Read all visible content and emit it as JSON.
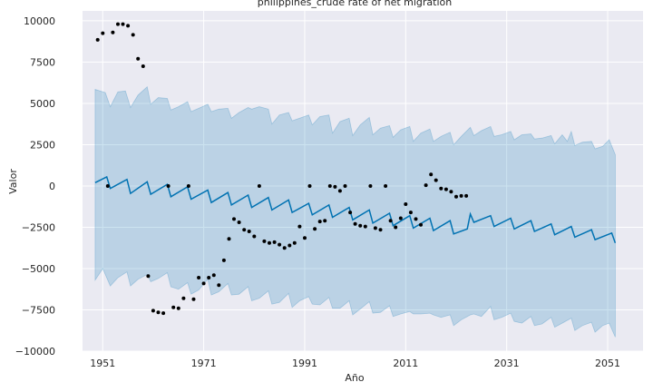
{
  "chart_data": {
    "type": "line",
    "title": "philippines_crude rate of net migration",
    "xlabel": "Año",
    "ylabel": "Valor",
    "xlim": [
      1947,
      2058
    ],
    "ylim": [
      -10000,
      10600
    ],
    "x_ticks": [
      1951,
      1971,
      1991,
      2011,
      2031,
      2051
    ],
    "x_tick_labels": [
      "1951",
      "1971",
      "1991",
      "2011",
      "2031",
      "2051"
    ],
    "y_ticks": [
      10000,
      7500,
      5000,
      2500,
      0,
      -2500,
      -5000,
      -7500,
      -10000
    ],
    "y_tick_labels": [
      "10000",
      "7500",
      "5000",
      "2500",
      "0",
      "−2500",
      "−5000",
      "−7500",
      "−10000"
    ],
    "grid": true,
    "colors": {
      "background": "#eaeaf2",
      "grid": "#ffffff",
      "forecast_line": "#0072b2",
      "interval_fill": "#0072b2",
      "observed_points": "#000000"
    },
    "observed": [
      {
        "x": 1950,
        "y": 8850
      },
      {
        "x": 1951,
        "y": 9250
      },
      {
        "x": 1952,
        "y": 0
      },
      {
        "x": 1953,
        "y": 9300
      },
      {
        "x": 1954,
        "y": 9800
      },
      {
        "x": 1955,
        "y": 9800
      },
      {
        "x": 1956,
        "y": 9700
      },
      {
        "x": 1957,
        "y": 9150
      },
      {
        "x": 1958,
        "y": 7700
      },
      {
        "x": 1959,
        "y": 7250
      },
      {
        "x": 1960,
        "y": -5450
      },
      {
        "x": 1961,
        "y": -7550
      },
      {
        "x": 1962,
        "y": -7650
      },
      {
        "x": 1963,
        "y": -7700
      },
      {
        "x": 1964,
        "y": 0
      },
      {
        "x": 1965,
        "y": -7350
      },
      {
        "x": 1966,
        "y": -7400
      },
      {
        "x": 1967,
        "y": -6800
      },
      {
        "x": 1968,
        "y": 0
      },
      {
        "x": 1969,
        "y": -6850
      },
      {
        "x": 1970,
        "y": -5550
      },
      {
        "x": 1971,
        "y": -5900
      },
      {
        "x": 1972,
        "y": -5550
      },
      {
        "x": 1973,
        "y": -5400
      },
      {
        "x": 1974,
        "y": -6000
      },
      {
        "x": 1975,
        "y": -4500
      },
      {
        "x": 1976,
        "y": -3200
      },
      {
        "x": 1977,
        "y": -2000
      },
      {
        "x": 1978,
        "y": -2200
      },
      {
        "x": 1979,
        "y": -2650
      },
      {
        "x": 1980,
        "y": -2750
      },
      {
        "x": 1981,
        "y": -3050
      },
      {
        "x": 1982,
        "y": 0
      },
      {
        "x": 1983,
        "y": -3350
      },
      {
        "x": 1984,
        "y": -3450
      },
      {
        "x": 1985,
        "y": -3400
      },
      {
        "x": 1986,
        "y": -3550
      },
      {
        "x": 1987,
        "y": -3750
      },
      {
        "x": 1988,
        "y": -3600
      },
      {
        "x": 1989,
        "y": -3450
      },
      {
        "x": 1990,
        "y": -2450
      },
      {
        "x": 1991,
        "y": -3150
      },
      {
        "x": 1992,
        "y": 0
      },
      {
        "x": 1993,
        "y": -2600
      },
      {
        "x": 1994,
        "y": -2150
      },
      {
        "x": 1995,
        "y": -2100
      },
      {
        "x": 1996,
        "y": 0
      },
      {
        "x": 1997,
        "y": -50
      },
      {
        "x": 1998,
        "y": -300
      },
      {
        "x": 1999,
        "y": 0
      },
      {
        "x": 2000,
        "y": -1600
      },
      {
        "x": 2001,
        "y": -2300
      },
      {
        "x": 2002,
        "y": -2400
      },
      {
        "x": 2003,
        "y": -2450
      },
      {
        "x": 2004,
        "y": 0
      },
      {
        "x": 2005,
        "y": -2550
      },
      {
        "x": 2006,
        "y": -2650
      },
      {
        "x": 2007,
        "y": 0
      },
      {
        "x": 2008,
        "y": -2100
      },
      {
        "x": 2009,
        "y": -2500
      },
      {
        "x": 2010,
        "y": -1950
      },
      {
        "x": 2011,
        "y": -1100
      },
      {
        "x": 2012,
        "y": -1600
      },
      {
        "x": 2013,
        "y": -2000
      },
      {
        "x": 2014,
        "y": -2350
      },
      {
        "x": 2015,
        "y": 50
      },
      {
        "x": 2016,
        "y": 700
      },
      {
        "x": 2017,
        "y": 350
      },
      {
        "x": 2018,
        "y": -150
      },
      {
        "x": 2019,
        "y": -200
      },
      {
        "x": 2020,
        "y": -350
      },
      {
        "x": 2021,
        "y": -650
      },
      {
        "x": 2022,
        "y": -600
      },
      {
        "x": 2023,
        "y": -600
      }
    ],
    "forecast": [
      {
        "x": 1949.5,
        "y": 200
      },
      {
        "x": 1951.8,
        "y": 550
      },
      {
        "x": 1952.5,
        "y": -150
      },
      {
        "x": 1955.8,
        "y": 400
      },
      {
        "x": 1956.5,
        "y": -450
      },
      {
        "x": 1959.8,
        "y": 250
      },
      {
        "x": 1960.5,
        "y": -500
      },
      {
        "x": 1963.8,
        "y": 100
      },
      {
        "x": 1964.5,
        "y": -650
      },
      {
        "x": 1967.8,
        "y": -50
      },
      {
        "x": 1968.5,
        "y": -800
      },
      {
        "x": 1971.8,
        "y": -250
      },
      {
        "x": 1972.5,
        "y": -1000
      },
      {
        "x": 1975.8,
        "y": -400
      },
      {
        "x": 1976.5,
        "y": -1150
      },
      {
        "x": 1979.8,
        "y": -550
      },
      {
        "x": 1980.5,
        "y": -1300
      },
      {
        "x": 1983.8,
        "y": -700
      },
      {
        "x": 1984.5,
        "y": -1450
      },
      {
        "x": 1987.8,
        "y": -850
      },
      {
        "x": 1988.5,
        "y": -1600
      },
      {
        "x": 1991.8,
        "y": -1050
      },
      {
        "x": 1992.5,
        "y": -1750
      },
      {
        "x": 1995.8,
        "y": -1150
      },
      {
        "x": 1996.5,
        "y": -1900
      },
      {
        "x": 1999.8,
        "y": -1300
      },
      {
        "x": 2000.5,
        "y": -2050
      },
      {
        "x": 2003.8,
        "y": -1450
      },
      {
        "x": 2004.5,
        "y": -2250
      },
      {
        "x": 2007.8,
        "y": -1650
      },
      {
        "x": 2008.5,
        "y": -2400
      },
      {
        "x": 2011.8,
        "y": -1800
      },
      {
        "x": 2012.5,
        "y": -2550
      },
      {
        "x": 2015.8,
        "y": -1950
      },
      {
        "x": 2016.5,
        "y": -2700
      },
      {
        "x": 2019.8,
        "y": -2100
      },
      {
        "x": 2020.5,
        "y": -2900
      },
      {
        "x": 2023.2,
        "y": -2600
      },
      {
        "x": 2023.8,
        "y": -1700
      },
      {
        "x": 2024.5,
        "y": -2200
      },
      {
        "x": 2027.8,
        "y": -1800
      },
      {
        "x": 2028.5,
        "y": -2450
      },
      {
        "x": 2031.8,
        "y": -1950
      },
      {
        "x": 2032.5,
        "y": -2600
      },
      {
        "x": 2035.8,
        "y": -2100
      },
      {
        "x": 2036.5,
        "y": -2750
      },
      {
        "x": 2039.8,
        "y": -2300
      },
      {
        "x": 2040.5,
        "y": -2950
      },
      {
        "x": 2043.8,
        "y": -2450
      },
      {
        "x": 2044.5,
        "y": -3100
      },
      {
        "x": 2047.8,
        "y": -2650
      },
      {
        "x": 2048.5,
        "y": -3250
      },
      {
        "x": 2051.8,
        "y": -2850
      },
      {
        "x": 2052.5,
        "y": -3450
      }
    ],
    "interval_upper": [
      {
        "x": 1949.5,
        "y": 5850
      },
      {
        "x": 1951.5,
        "y": 5650
      },
      {
        "x": 1952.5,
        "y": 4800
      },
      {
        "x": 1954,
        "y": 5700
      },
      {
        "x": 1955.5,
        "y": 5750
      },
      {
        "x": 1956.5,
        "y": 4750
      },
      {
        "x": 1958,
        "y": 5500
      },
      {
        "x": 1959.8,
        "y": 6000
      },
      {
        "x": 1960.5,
        "y": 4950
      },
      {
        "x": 1962,
        "y": 5350
      },
      {
        "x": 1963.8,
        "y": 5300
      },
      {
        "x": 1964.5,
        "y": 4600
      },
      {
        "x": 1966,
        "y": 4800
      },
      {
        "x": 1967.8,
        "y": 5100
      },
      {
        "x": 1968.5,
        "y": 4500
      },
      {
        "x": 1970,
        "y": 4700
      },
      {
        "x": 1971.8,
        "y": 4950
      },
      {
        "x": 1972.5,
        "y": 4500
      },
      {
        "x": 1974,
        "y": 4650
      },
      {
        "x": 1975.8,
        "y": 4700
      },
      {
        "x": 1976.5,
        "y": 4100
      },
      {
        "x": 1978,
        "y": 4450
      },
      {
        "x": 1979.8,
        "y": 4750
      },
      {
        "x": 1980.5,
        "y": 4650
      },
      {
        "x": 1982,
        "y": 4800
      },
      {
        "x": 1983.8,
        "y": 4650
      },
      {
        "x": 1984.5,
        "y": 3750
      },
      {
        "x": 1986,
        "y": 4300
      },
      {
        "x": 1987.8,
        "y": 4450
      },
      {
        "x": 1988.5,
        "y": 3950
      },
      {
        "x": 1990,
        "y": 4100
      },
      {
        "x": 1991.8,
        "y": 4300
      },
      {
        "x": 1992.5,
        "y": 3700
      },
      {
        "x": 1994,
        "y": 4200
      },
      {
        "x": 1995.8,
        "y": 4300
      },
      {
        "x": 1996.5,
        "y": 3200
      },
      {
        "x": 1998,
        "y": 3900
      },
      {
        "x": 1999.8,
        "y": 4100
      },
      {
        "x": 2000.5,
        "y": 3050
      },
      {
        "x": 2002,
        "y": 3700
      },
      {
        "x": 2003.8,
        "y": 4150
      },
      {
        "x": 2004.5,
        "y": 3100
      },
      {
        "x": 2006,
        "y": 3500
      },
      {
        "x": 2007.8,
        "y": 3650
      },
      {
        "x": 2008.5,
        "y": 2950
      },
      {
        "x": 2010,
        "y": 3400
      },
      {
        "x": 2011.8,
        "y": 3600
      },
      {
        "x": 2012.5,
        "y": 2700
      },
      {
        "x": 2014,
        "y": 3200
      },
      {
        "x": 2015.8,
        "y": 3450
      },
      {
        "x": 2016.5,
        "y": 2700
      },
      {
        "x": 2018,
        "y": 3000
      },
      {
        "x": 2019.8,
        "y": 3250
      },
      {
        "x": 2020.5,
        "y": 2500
      },
      {
        "x": 2022,
        "y": 3000
      },
      {
        "x": 2023.8,
        "y": 3550
      },
      {
        "x": 2024.5,
        "y": 3050
      },
      {
        "x": 2026,
        "y": 3350
      },
      {
        "x": 2027.8,
        "y": 3600
      },
      {
        "x": 2028.5,
        "y": 3000
      },
      {
        "x": 2030,
        "y": 3100
      },
      {
        "x": 2031.8,
        "y": 3300
      },
      {
        "x": 2032.5,
        "y": 2800
      },
      {
        "x": 2034,
        "y": 3100
      },
      {
        "x": 2035.8,
        "y": 3150
      },
      {
        "x": 2036.5,
        "y": 2850
      },
      {
        "x": 2038,
        "y": 2900
      },
      {
        "x": 2039.8,
        "y": 3050
      },
      {
        "x": 2040.5,
        "y": 2550
      },
      {
        "x": 2042,
        "y": 3100
      },
      {
        "x": 2043,
        "y": 2700
      },
      {
        "x": 2043.8,
        "y": 3300
      },
      {
        "x": 2044.5,
        "y": 2450
      },
      {
        "x": 2046,
        "y": 2650
      },
      {
        "x": 2047.8,
        "y": 2700
      },
      {
        "x": 2048.5,
        "y": 2250
      },
      {
        "x": 2050,
        "y": 2400
      },
      {
        "x": 2051.3,
        "y": 2800
      },
      {
        "x": 2052.5,
        "y": 1900
      }
    ],
    "interval_lower": [
      {
        "x": 1949.5,
        "y": -5700
      },
      {
        "x": 1951,
        "y": -5000
      },
      {
        "x": 1952.5,
        "y": -6050
      },
      {
        "x": 1954,
        "y": -5550
      },
      {
        "x": 1955.8,
        "y": -5200
      },
      {
        "x": 1956.5,
        "y": -6050
      },
      {
        "x": 1958,
        "y": -5650
      },
      {
        "x": 1959.8,
        "y": -5350
      },
      {
        "x": 1960.5,
        "y": -5800
      },
      {
        "x": 1962,
        "y": -5600
      },
      {
        "x": 1963.8,
        "y": -5250
      },
      {
        "x": 1964.5,
        "y": -6100
      },
      {
        "x": 1966,
        "y": -6250
      },
      {
        "x": 1967.8,
        "y": -5850
      },
      {
        "x": 1968.5,
        "y": -6550
      },
      {
        "x": 1970,
        "y": -6300
      },
      {
        "x": 1971.8,
        "y": -5650
      },
      {
        "x": 1972.5,
        "y": -6600
      },
      {
        "x": 1974,
        "y": -6400
      },
      {
        "x": 1975.8,
        "y": -5900
      },
      {
        "x": 1976.5,
        "y": -6600
      },
      {
        "x": 1978,
        "y": -6550
      },
      {
        "x": 1979.8,
        "y": -6100
      },
      {
        "x": 1980.5,
        "y": -6950
      },
      {
        "x": 1982,
        "y": -6800
      },
      {
        "x": 1983.8,
        "y": -6350
      },
      {
        "x": 1984.5,
        "y": -7150
      },
      {
        "x": 1986,
        "y": -7050
      },
      {
        "x": 1987.8,
        "y": -6500
      },
      {
        "x": 1988.5,
        "y": -7350
      },
      {
        "x": 1990,
        "y": -6950
      },
      {
        "x": 1991.8,
        "y": -6700
      },
      {
        "x": 1992.5,
        "y": -7150
      },
      {
        "x": 1994,
        "y": -7200
      },
      {
        "x": 1995.8,
        "y": -6750
      },
      {
        "x": 1996.5,
        "y": -7400
      },
      {
        "x": 1998,
        "y": -7400
      },
      {
        "x": 1999.8,
        "y": -6950
      },
      {
        "x": 2000.5,
        "y": -7800
      },
      {
        "x": 2002,
        "y": -7450
      },
      {
        "x": 2003.8,
        "y": -7000
      },
      {
        "x": 2004.5,
        "y": -7700
      },
      {
        "x": 2006,
        "y": -7650
      },
      {
        "x": 2007.8,
        "y": -7250
      },
      {
        "x": 2008.5,
        "y": -7900
      },
      {
        "x": 2010,
        "y": -7750
      },
      {
        "x": 2011.8,
        "y": -7600
      },
      {
        "x": 2012.5,
        "y": -7750
      },
      {
        "x": 2014,
        "y": -7750
      },
      {
        "x": 2015.8,
        "y": -7700
      },
      {
        "x": 2016.5,
        "y": -7800
      },
      {
        "x": 2018,
        "y": -7950
      },
      {
        "x": 2019.8,
        "y": -7800
      },
      {
        "x": 2020.5,
        "y": -8450
      },
      {
        "x": 2022,
        "y": -8100
      },
      {
        "x": 2023.8,
        "y": -7800
      },
      {
        "x": 2024.5,
        "y": -7750
      },
      {
        "x": 2026,
        "y": -7900
      },
      {
        "x": 2027.8,
        "y": -7300
      },
      {
        "x": 2028.5,
        "y": -8100
      },
      {
        "x": 2030,
        "y": -7950
      },
      {
        "x": 2031.8,
        "y": -7700
      },
      {
        "x": 2032.5,
        "y": -8200
      },
      {
        "x": 2034,
        "y": -8300
      },
      {
        "x": 2035.8,
        "y": -7900
      },
      {
        "x": 2036.5,
        "y": -8450
      },
      {
        "x": 2038,
        "y": -8350
      },
      {
        "x": 2039.8,
        "y": -7950
      },
      {
        "x": 2040.5,
        "y": -8550
      },
      {
        "x": 2042,
        "y": -8300
      },
      {
        "x": 2043.8,
        "y": -8000
      },
      {
        "x": 2044.5,
        "y": -8750
      },
      {
        "x": 2046,
        "y": -8450
      },
      {
        "x": 2047.8,
        "y": -8250
      },
      {
        "x": 2048.5,
        "y": -8850
      },
      {
        "x": 2050,
        "y": -8450
      },
      {
        "x": 2051.3,
        "y": -8300
      },
      {
        "x": 2052.5,
        "y": -9150
      }
    ]
  }
}
